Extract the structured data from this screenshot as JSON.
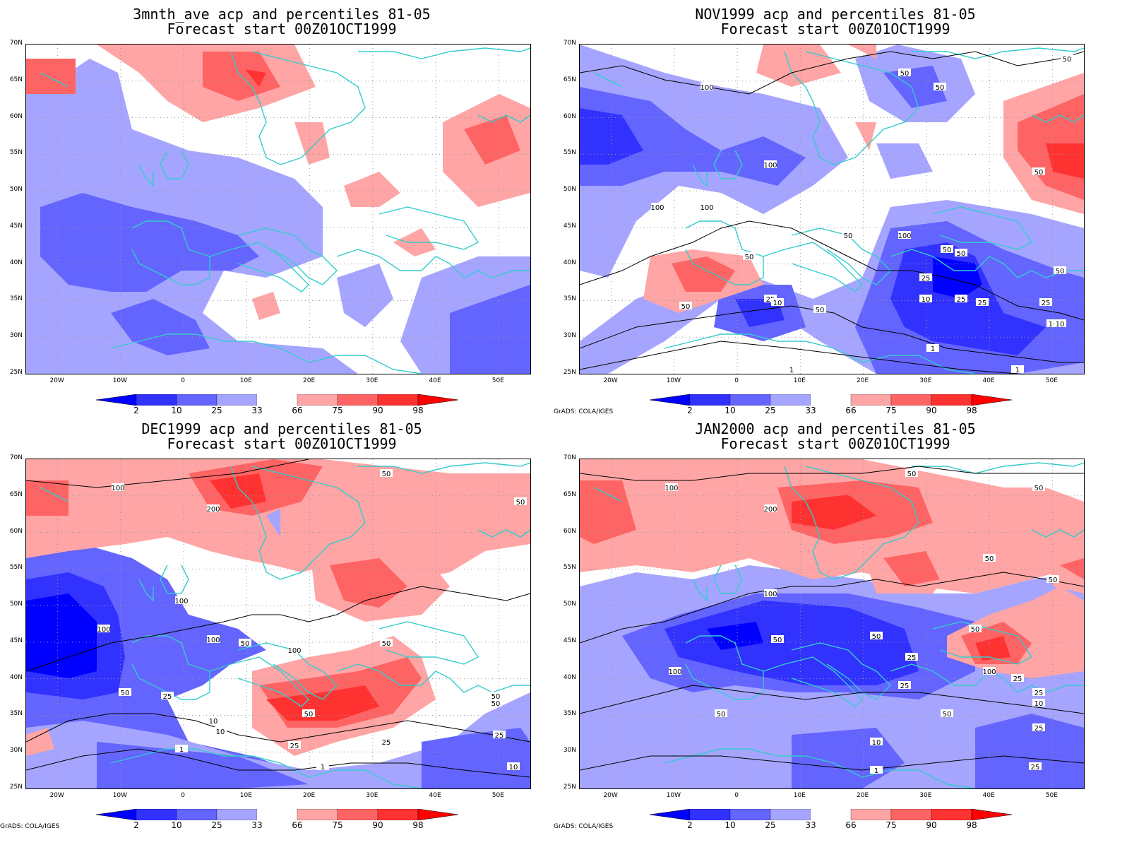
{
  "panels": [
    {
      "id": "p1",
      "title": "3mnth_ave acp and percentiles 81-05",
      "subtitle": "Forecast start 00Z01OCT1999",
      "credit": "",
      "contour_labels": []
    },
    {
      "id": "p2",
      "title": "NOV1999 acp and percentiles 81-05",
      "subtitle": "Forecast start 00Z01OCT1999",
      "credit": "GrADS: COLA/IGES",
      "contour_labels": [
        "100",
        "50",
        "50",
        "50",
        "100",
        "100",
        "100",
        "50",
        "50",
        "100",
        "50",
        "50",
        "50",
        "25",
        "10",
        "50",
        "25",
        "25",
        "10",
        "25",
        "1",
        "1",
        "10",
        "1",
        "25",
        "50",
        "50",
        "10"
      ]
    },
    {
      "id": "p3",
      "title": "DEC1999 acp and percentiles 81-05",
      "subtitle": "Forecast start 00Z01OCT1999",
      "credit": "GrADS: COLA/IGES",
      "contour_labels": [
        "100",
        "50",
        "200",
        "50",
        "100",
        "100",
        "100",
        "100",
        "50",
        "50",
        "50",
        "25",
        "10",
        "1",
        "25",
        "1",
        "50",
        "25",
        "10",
        "50",
        "50",
        "25",
        "10"
      ]
    },
    {
      "id": "p4",
      "title": "JAN2000 acp and percentiles 81-05",
      "subtitle": "Forecast start 00Z01OCT1999",
      "credit": "GrADS: COLA/IGES",
      "contour_labels": [
        "100",
        "50",
        "50",
        "200",
        "50",
        "100",
        "50",
        "50",
        "50",
        "50",
        "25",
        "25",
        "100",
        "25",
        "100",
        "50",
        "25",
        "50",
        "10",
        "1",
        "50",
        "25",
        "25",
        "10"
      ]
    }
  ],
  "map": {
    "lat_labels": [
      "70N",
      "65N",
      "60N",
      "55N",
      "50N",
      "45N",
      "40N",
      "35N",
      "30N",
      "25N"
    ],
    "lon_labels": [
      "20W",
      "10W",
      "0",
      "10E",
      "20E",
      "30E",
      "40E",
      "50E"
    ],
    "lat_range": [
      25,
      70
    ],
    "lon_range": [
      -25,
      55
    ]
  },
  "colorbar": {
    "ticks": [
      "2",
      "10",
      "25",
      "33",
      "66",
      "75",
      "90",
      "98"
    ],
    "colors": [
      "#0000ff",
      "#3232ff",
      "#6464ff",
      "#a5a5ff",
      "#ffffff",
      "#ffa5a5",
      "#ff6464",
      "#ff3232",
      "#ff0000"
    ]
  },
  "colors": {
    "coastline": "#33cccc",
    "contour": "#000000",
    "grid": "#999999"
  }
}
